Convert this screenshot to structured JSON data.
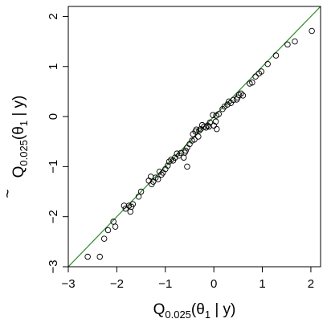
{
  "chart_data": {
    "type": "scatter",
    "title": "",
    "xlabel": {
      "main": "Q",
      "sub": "0.025",
      "rest": "(θ",
      "sub2": "1",
      "tail": " | y)"
    },
    "ylabel": {
      "accent": "~",
      "main": "Q",
      "sub": "0.025",
      "rest": "(θ",
      "sub2": "1",
      "tail": " | y)"
    },
    "xlim": [
      -3,
      2.2
    ],
    "ylim": [
      -3,
      2.2
    ],
    "xticks": [
      -3,
      -2,
      -1,
      0,
      1,
      2
    ],
    "yticks": [
      -3,
      -2,
      -1,
      0,
      1,
      2
    ],
    "xtick_labels": [
      "−3",
      "−2",
      "−1",
      "0",
      "1",
      "2"
    ],
    "ytick_labels": [
      "−3",
      "−2",
      "−1",
      "0",
      "1",
      "2"
    ],
    "grid": false,
    "reference_line": {
      "slope": 1,
      "intercept": 0,
      "color": "#2e8b2e"
    },
    "point_color": "#000000",
    "points": [
      {
        "x": 2.02,
        "y": 1.71
      },
      {
        "x": 1.67,
        "y": 1.5
      },
      {
        "x": 1.52,
        "y": 1.44
      },
      {
        "x": 1.28,
        "y": 1.22
      },
      {
        "x": 1.11,
        "y": 1.05
      },
      {
        "x": 0.98,
        "y": 0.9
      },
      {
        "x": 0.93,
        "y": 0.86
      },
      {
        "x": 0.86,
        "y": 0.8
      },
      {
        "x": 0.79,
        "y": 0.68
      },
      {
        "x": 0.74,
        "y": 0.66
      },
      {
        "x": 0.6,
        "y": 0.42
      },
      {
        "x": 0.56,
        "y": 0.46
      },
      {
        "x": 0.52,
        "y": 0.43
      },
      {
        "x": 0.49,
        "y": 0.38
      },
      {
        "x": 0.47,
        "y": 0.34
      },
      {
        "x": 0.4,
        "y": 0.33
      },
      {
        "x": 0.35,
        "y": 0.27
      },
      {
        "x": 0.31,
        "y": 0.3
      },
      {
        "x": 0.28,
        "y": 0.24
      },
      {
        "x": 0.22,
        "y": 0.2
      },
      {
        "x": 0.18,
        "y": 0.15
      },
      {
        "x": 0.1,
        "y": 0.05
      },
      {
        "x": 0.05,
        "y": 0.02
      },
      {
        "x": 0.06,
        "y": -0.25
      },
      {
        "x": 0.04,
        "y": -0.1
      },
      {
        "x": 0.0,
        "y": -0.18
      },
      {
        "x": -0.02,
        "y": 0.03
      },
      {
        "x": -0.08,
        "y": -0.12
      },
      {
        "x": -0.1,
        "y": -0.2
      },
      {
        "x": -0.13,
        "y": -0.18
      },
      {
        "x": -0.16,
        "y": -0.22
      },
      {
        "x": -0.2,
        "y": -0.2
      },
      {
        "x": -0.24,
        "y": -0.17
      },
      {
        "x": -0.27,
        "y": -0.25
      },
      {
        "x": -0.3,
        "y": -0.28
      },
      {
        "x": -0.32,
        "y": -0.4
      },
      {
        "x": -0.36,
        "y": -0.26
      },
      {
        "x": -0.38,
        "y": -0.3
      },
      {
        "x": -0.4,
        "y": -0.46
      },
      {
        "x": -0.43,
        "y": -0.35
      },
      {
        "x": -0.45,
        "y": -0.48
      },
      {
        "x": -0.5,
        "y": -0.55
      },
      {
        "x": -0.55,
        "y": -0.62
      },
      {
        "x": -0.58,
        "y": -0.68
      },
      {
        "x": -0.6,
        "y": -0.72
      },
      {
        "x": -0.62,
        "y": -0.82
      },
      {
        "x": -0.55,
        "y": -1.0
      },
      {
        "x": -0.68,
        "y": -0.73
      },
      {
        "x": -0.72,
        "y": -0.78
      },
      {
        "x": -0.76,
        "y": -0.74
      },
      {
        "x": -0.8,
        "y": -0.82
      },
      {
        "x": -0.84,
        "y": -0.88
      },
      {
        "x": -0.88,
        "y": -0.86
      },
      {
        "x": -0.92,
        "y": -0.9
      },
      {
        "x": -0.95,
        "y": -0.98
      },
      {
        "x": -1.0,
        "y": -1.05
      },
      {
        "x": -1.05,
        "y": -1.12
      },
      {
        "x": -1.08,
        "y": -1.16
      },
      {
        "x": -1.12,
        "y": -1.1
      },
      {
        "x": -1.15,
        "y": -1.25
      },
      {
        "x": -1.2,
        "y": -1.22
      },
      {
        "x": -1.25,
        "y": -1.3
      },
      {
        "x": -1.28,
        "y": -1.35
      },
      {
        "x": -1.3,
        "y": -1.2
      },
      {
        "x": -1.34,
        "y": -1.28
      },
      {
        "x": -1.5,
        "y": -1.5
      },
      {
        "x": -1.55,
        "y": -1.6
      },
      {
        "x": -1.67,
        "y": -1.75
      },
      {
        "x": -1.7,
        "y": -1.8
      },
      {
        "x": -1.75,
        "y": -1.78
      },
      {
        "x": -1.72,
        "y": -1.9
      },
      {
        "x": -1.82,
        "y": -1.84
      },
      {
        "x": -1.85,
        "y": -1.78
      },
      {
        "x": -2.07,
        "y": -2.1
      },
      {
        "x": -2.03,
        "y": -2.2
      },
      {
        "x": -2.18,
        "y": -2.27
      },
      {
        "x": -2.26,
        "y": -2.44
      },
      {
        "x": -2.35,
        "y": -2.8
      },
      {
        "x": -2.6,
        "y": -2.8
      }
    ]
  }
}
